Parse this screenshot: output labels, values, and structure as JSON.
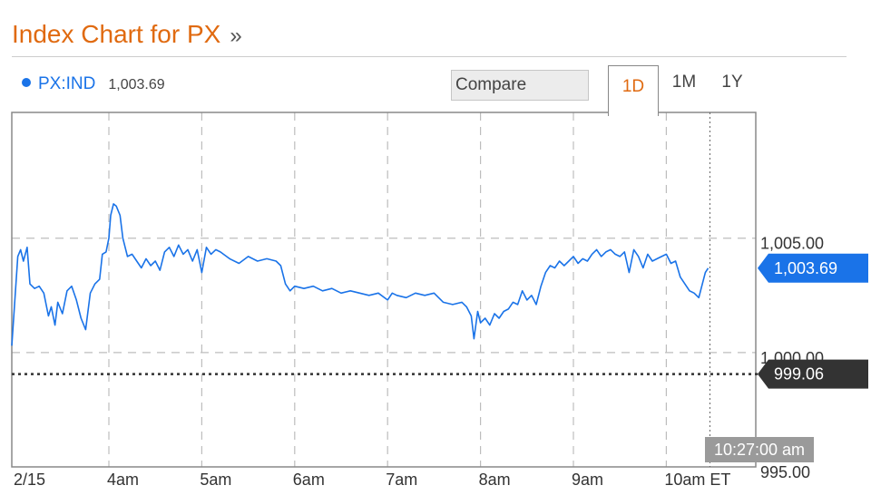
{
  "header": {
    "title": "Index Chart for PX",
    "more_icon": "double-chevron-right-icon",
    "more_glyph": "»"
  },
  "legend": {
    "symbol": "PX:IND",
    "last_value": "1,003.69",
    "dot_color": "#1a73e8"
  },
  "compare": {
    "label": "Compare"
  },
  "tabs": [
    {
      "label": "1D",
      "active": true
    },
    {
      "label": "1M",
      "active": false
    },
    {
      "label": "1Y",
      "active": false
    }
  ],
  "chart_data": {
    "type": "line",
    "title": "Index Chart for PX",
    "x_tick_labels": [
      "2/15",
      "4am",
      "5am",
      "6am",
      "7am",
      "8am",
      "9am",
      "10am ET"
    ],
    "y_tick_labels": [
      "1,005.00",
      "1,000.00",
      "995.00"
    ],
    "y_ticks": [
      1005,
      1000,
      995
    ],
    "ylim": [
      995,
      1010.5
    ],
    "x_unit": "hours",
    "xlim": [
      3.0,
      10.6
    ],
    "grid": true,
    "series": [
      {
        "name": "PX:IND",
        "color": "#1a73e8",
        "points": [
          [
            3.0,
            1000.3
          ],
          [
            3.02,
            1004.2
          ],
          [
            3.05,
            1004.5
          ],
          [
            3.08,
            1004.0
          ],
          [
            3.12,
            1004.6
          ],
          [
            3.15,
            1003.0
          ],
          [
            3.2,
            1002.8
          ],
          [
            3.25,
            1002.9
          ],
          [
            3.3,
            1002.6
          ],
          [
            3.35,
            1001.6
          ],
          [
            3.38,
            1002.0
          ],
          [
            3.42,
            1001.2
          ],
          [
            3.45,
            1002.2
          ],
          [
            3.5,
            1001.7
          ],
          [
            3.55,
            1002.7
          ],
          [
            3.6,
            1002.9
          ],
          [
            3.65,
            1002.3
          ],
          [
            3.7,
            1001.5
          ],
          [
            3.75,
            1001.0
          ],
          [
            3.8,
            1002.6
          ],
          [
            3.85,
            1003.0
          ],
          [
            3.9,
            1003.2
          ],
          [
            3.93,
            1004.3
          ],
          [
            3.97,
            1004.4
          ],
          [
            4.0,
            1005.0
          ],
          [
            4.02,
            1006.0
          ],
          [
            4.05,
            1006.5
          ],
          [
            4.08,
            1006.4
          ],
          [
            4.12,
            1006.0
          ],
          [
            4.15,
            1005.0
          ],
          [
            4.2,
            1004.2
          ],
          [
            4.25,
            1004.3
          ],
          [
            4.3,
            1004.0
          ],
          [
            4.35,
            1003.7
          ],
          [
            4.4,
            1004.1
          ],
          [
            4.45,
            1003.8
          ],
          [
            4.5,
            1004.0
          ],
          [
            4.55,
            1003.6
          ],
          [
            4.6,
            1004.4
          ],
          [
            4.65,
            1004.6
          ],
          [
            4.7,
            1004.2
          ],
          [
            4.75,
            1004.7
          ],
          [
            4.8,
            1004.3
          ],
          [
            4.85,
            1004.5
          ],
          [
            4.9,
            1004.0
          ],
          [
            4.95,
            1004.5
          ],
          [
            5.0,
            1003.5
          ],
          [
            5.05,
            1004.6
          ],
          [
            5.1,
            1004.3
          ],
          [
            5.15,
            1004.5
          ],
          [
            5.2,
            1004.4
          ],
          [
            5.3,
            1004.1
          ],
          [
            5.4,
            1003.9
          ],
          [
            5.5,
            1004.2
          ],
          [
            5.6,
            1004.0
          ],
          [
            5.7,
            1004.1
          ],
          [
            5.8,
            1004.0
          ],
          [
            5.85,
            1003.8
          ],
          [
            5.9,
            1003.0
          ],
          [
            5.95,
            1002.7
          ],
          [
            6.0,
            1002.9
          ],
          [
            6.1,
            1002.8
          ],
          [
            6.2,
            1002.9
          ],
          [
            6.3,
            1002.7
          ],
          [
            6.4,
            1002.8
          ],
          [
            6.5,
            1002.6
          ],
          [
            6.6,
            1002.7
          ],
          [
            6.7,
            1002.6
          ],
          [
            6.8,
            1002.5
          ],
          [
            6.9,
            1002.6
          ],
          [
            7.0,
            1002.3
          ],
          [
            7.05,
            1002.6
          ],
          [
            7.1,
            1002.5
          ],
          [
            7.2,
            1002.4
          ],
          [
            7.3,
            1002.6
          ],
          [
            7.4,
            1002.5
          ],
          [
            7.5,
            1002.6
          ],
          [
            7.6,
            1002.2
          ],
          [
            7.7,
            1002.1
          ],
          [
            7.8,
            1002.2
          ],
          [
            7.85,
            1002.0
          ],
          [
            7.9,
            1001.6
          ],
          [
            7.93,
            1000.6
          ],
          [
            7.97,
            1001.8
          ],
          [
            8.0,
            1001.3
          ],
          [
            8.05,
            1001.5
          ],
          [
            8.1,
            1001.2
          ],
          [
            8.15,
            1001.7
          ],
          [
            8.2,
            1001.5
          ],
          [
            8.25,
            1001.8
          ],
          [
            8.3,
            1001.9
          ],
          [
            8.35,
            1002.2
          ],
          [
            8.4,
            1002.1
          ],
          [
            8.45,
            1002.7
          ],
          [
            8.5,
            1002.3
          ],
          [
            8.55,
            1002.5
          ],
          [
            8.6,
            1002.1
          ],
          [
            8.65,
            1002.9
          ],
          [
            8.7,
            1003.5
          ],
          [
            8.75,
            1003.8
          ],
          [
            8.8,
            1003.7
          ],
          [
            8.85,
            1004.0
          ],
          [
            8.9,
            1003.8
          ],
          [
            8.95,
            1004.0
          ],
          [
            9.0,
            1004.2
          ],
          [
            9.05,
            1003.9
          ],
          [
            9.1,
            1004.1
          ],
          [
            9.15,
            1004.0
          ],
          [
            9.2,
            1004.3
          ],
          [
            9.25,
            1004.5
          ],
          [
            9.3,
            1004.2
          ],
          [
            9.35,
            1004.4
          ],
          [
            9.4,
            1004.5
          ],
          [
            9.45,
            1004.3
          ],
          [
            9.5,
            1004.2
          ],
          [
            9.55,
            1004.4
          ],
          [
            9.6,
            1003.5
          ],
          [
            9.65,
            1004.5
          ],
          [
            9.7,
            1004.2
          ],
          [
            9.75,
            1003.7
          ],
          [
            9.8,
            1004.3
          ],
          [
            9.85,
            1004.0
          ],
          [
            9.9,
            1004.1
          ],
          [
            9.95,
            1004.2
          ],
          [
            10.0,
            1004.3
          ],
          [
            10.05,
            1003.9
          ],
          [
            10.1,
            1004.0
          ],
          [
            10.15,
            1003.3
          ],
          [
            10.2,
            1003.0
          ],
          [
            10.25,
            1002.7
          ],
          [
            10.3,
            1002.6
          ],
          [
            10.35,
            1002.4
          ],
          [
            10.42,
            1003.5
          ],
          [
            10.45,
            1003.69
          ]
        ]
      }
    ],
    "last_price": {
      "value": 1003.69,
      "label": "1,003.69",
      "color": "#1a73e8"
    },
    "prev_close": {
      "value": 999.06,
      "label": "999.06",
      "color": "#333333"
    },
    "crosshair_time": "10:27:00 am"
  }
}
